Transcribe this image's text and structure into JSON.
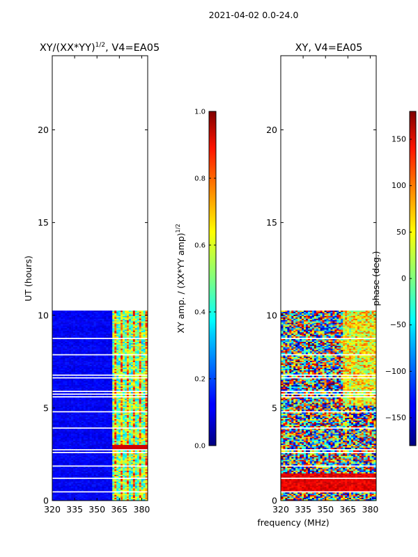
{
  "suptitle": "2021-04-02 0.0-24.0",
  "xlabel_shared": "frequency (MHz)",
  "chart_data": [
    {
      "type": "heatmap",
      "title_main": "XY/(XX*YY)",
      "title_sup": "1/2",
      "title_tail": ", V4=EA05",
      "ylabel": "UT (hours)",
      "xlim": [
        320,
        384
      ],
      "ylim": [
        0,
        24
      ],
      "x_ticks": [
        320,
        335,
        350,
        365,
        380
      ],
      "y_ticks": [
        0,
        5,
        10,
        15,
        20
      ],
      "data_ut_range": [
        0,
        10.25
      ],
      "colorbar": {
        "label": "XY amp. / (XX*YY amp)",
        "label_sup": "1/2",
        "range": [
          0.0,
          1.0
        ],
        "ticks": [
          "0.0",
          "0.2",
          "0.4",
          "0.6",
          "0.8",
          "1.0"
        ],
        "colormap": "jet"
      }
    },
    {
      "type": "heatmap",
      "title_main": "XY, V4=EA05",
      "ylabel": "",
      "xlim": [
        320,
        384
      ],
      "ylim": [
        0,
        24
      ],
      "x_ticks": [
        320,
        335,
        350,
        365,
        380
      ],
      "y_ticks": [
        0,
        5,
        10,
        15,
        20
      ],
      "data_ut_range": [
        0,
        10.25
      ],
      "colorbar": {
        "label": "phase (deg.)",
        "range": [
          -180,
          180
        ],
        "ticks": [
          "−150",
          "−100",
          "−50",
          "0",
          "50",
          "100",
          "150"
        ],
        "tick_values": [
          -150,
          -100,
          -50,
          0,
          50,
          100,
          150
        ],
        "colormap": "jet"
      }
    }
  ]
}
